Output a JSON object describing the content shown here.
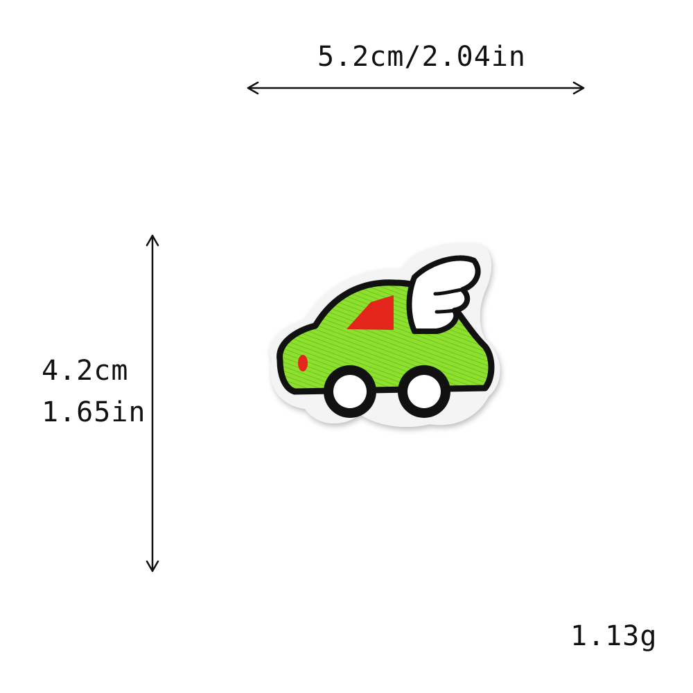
{
  "dimensions": {
    "width_label": "5.2cm/2.04in",
    "height_label_cm": "4.2cm",
    "height_label_in": "1.65in",
    "weight_label": "1.13g"
  },
  "patch": {
    "subject": "green-car-with-wing",
    "colors": {
      "body": "#8ee02e",
      "outline": "#111111",
      "window": "#e3251b",
      "light": "#e3251b",
      "wing": "#ffffff",
      "wheel": "#ffffff",
      "border": "#f4f4f4"
    }
  },
  "colors": {
    "arrow": "#111111",
    "text": "#111111",
    "background": "#ffffff"
  }
}
